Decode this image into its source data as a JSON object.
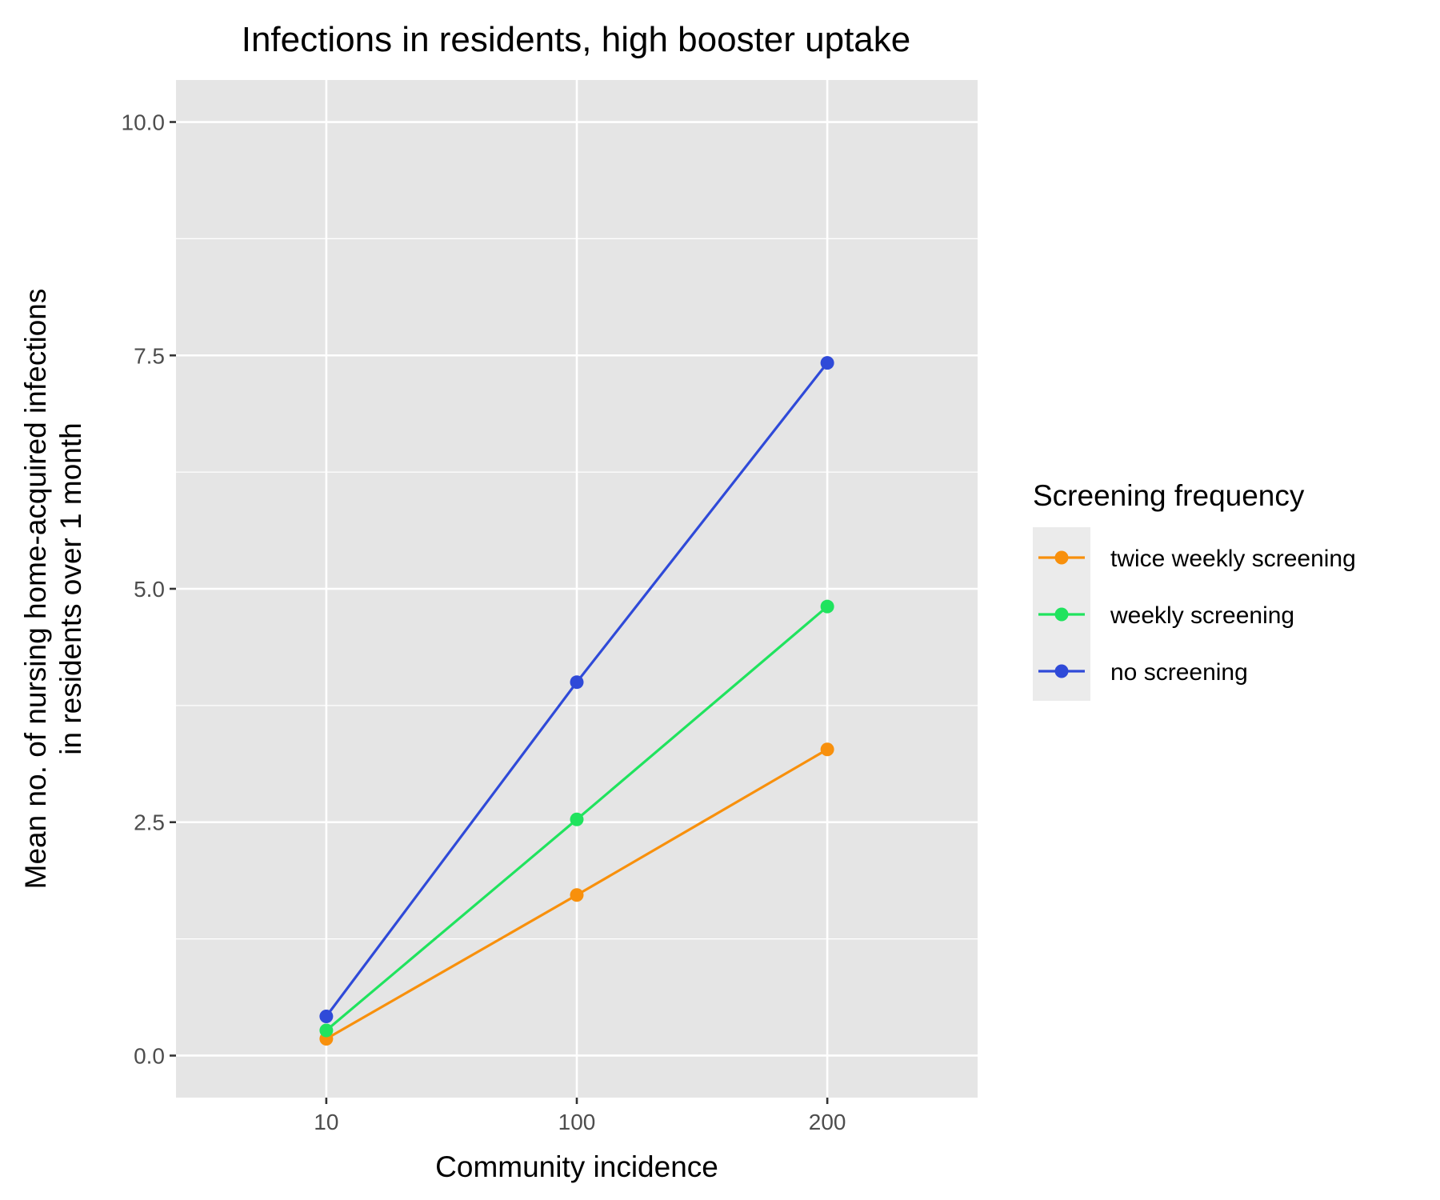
{
  "chart_data": {
    "type": "line",
    "title": "Infections in residents, high booster uptake",
    "xlabel": "Community incidence",
    "ylabel_lines": [
      "Mean no. of nursing home-acquired infections",
      "in residents over 1 month"
    ],
    "categories": [
      "10",
      "100",
      "200"
    ],
    "ylim": [
      -0.45,
      10.45
    ],
    "y_ticks": [
      0.0,
      2.5,
      5.0,
      7.5,
      10.0
    ],
    "y_tick_labels": [
      "0.0",
      "2.5",
      "5.0",
      "7.5",
      "10.0"
    ],
    "grid": true,
    "legend_position": "right",
    "legend_title": "Screening frequency",
    "series": [
      {
        "name": "twice weekly screening",
        "color": "#f8900c",
        "values": [
          0.18,
          1.72,
          3.28
        ]
      },
      {
        "name": "weekly screening",
        "color": "#20e35e",
        "values": [
          0.27,
          2.53,
          4.81
        ]
      },
      {
        "name": "no screening",
        "color": "#2f4ad8",
        "values": [
          0.42,
          4.0,
          7.42
        ]
      }
    ]
  },
  "colors": {
    "panel_background": "#e5e5e5",
    "grid_line": "#ffffff",
    "tick_text": "#4d4d4d"
  }
}
